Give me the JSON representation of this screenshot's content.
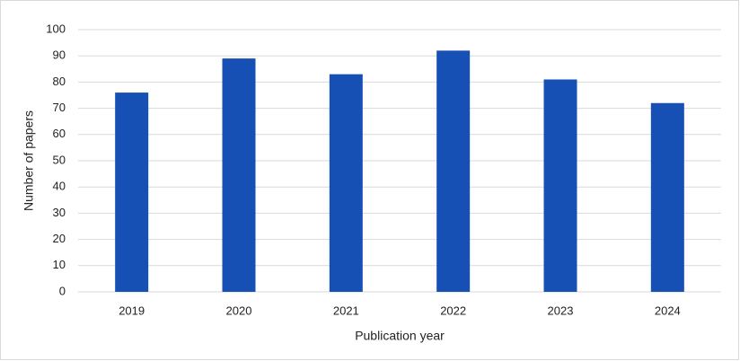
{
  "chart_data": {
    "type": "bar",
    "x_label": "Publication year",
    "y_label": "Number of papers",
    "categories": [
      "2019",
      "2020",
      "2021",
      "2022",
      "2023",
      "2024"
    ],
    "values": [
      76,
      89,
      83,
      92,
      81,
      72
    ],
    "color": "#1750b4",
    "ylim": [
      0,
      100
    ],
    "yticks": [
      0,
      10,
      20,
      30,
      40,
      50,
      60,
      70,
      80,
      90,
      100
    ],
    "grid": true
  }
}
